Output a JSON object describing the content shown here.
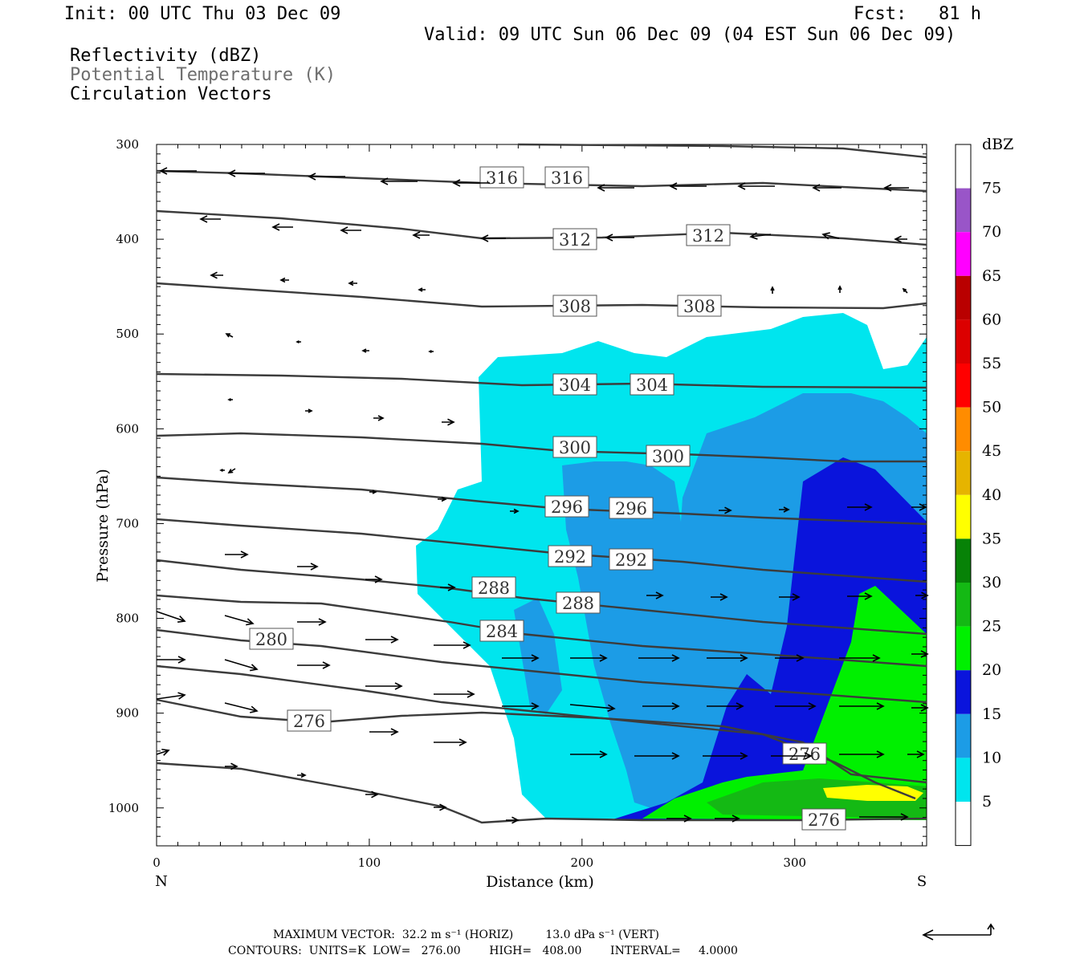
{
  "header": {
    "init": "Init: 00 UTC Thu 03 Dec 09",
    "fcst": "Fcst:   81 h",
    "valid": "Valid: 09 UTC Sun 06 Dec 09 (04 EST Sun 06 Dec 09)",
    "fields": [
      "Reflectivity (dBZ)",
      "Potential Temperature (K)",
      "Circulation Vectors"
    ]
  },
  "chart_data": {
    "type": "contour-cross-section",
    "xlabel": "Distance (km)",
    "ylabel": "Pressure (hPa)",
    "xlim": [
      0,
      362
    ],
    "ylim": [
      300,
      1040
    ],
    "x_ticks": [
      "0",
      "100",
      "200",
      "300"
    ],
    "y_ticks": [
      "300",
      "400",
      "500",
      "600",
      "700",
      "800",
      "900",
      "1000"
    ],
    "x_end_labels": {
      "left": "N",
      "right": "S"
    },
    "colorbar": {
      "unit": "dBZ",
      "levels": [
        "5",
        "10",
        "15",
        "20",
        "25",
        "30",
        "35",
        "40",
        "45",
        "50",
        "55",
        "60",
        "65",
        "70",
        "75"
      ],
      "colors": [
        "#ffffff",
        "#00e5ee",
        "#1c9ce6",
        "#0a14dc",
        "#00f000",
        "#14b914",
        "#078207",
        "#ffff00",
        "#e6b400",
        "#ff8c00",
        "#ff0000",
        "#dc0000",
        "#b90000",
        "#ff00ff",
        "#9955c8",
        "#ffffff"
      ]
    },
    "theta_labels": [
      "316",
      "316",
      "312",
      "312",
      "308",
      "308",
      "304",
      "304",
      "300",
      "300",
      "296",
      "296",
      "292",
      "292",
      "288",
      "288",
      "284",
      "280",
      "276",
      "276",
      "276"
    ],
    "theta_levels_K": [
      276,
      280,
      284,
      288,
      292,
      296,
      300,
      304,
      308,
      312,
      316
    ],
    "reflectivity_dbz": [
      5,
      10,
      15,
      20,
      25,
      35
    ]
  },
  "footer": {
    "max_vector": "MAXIMUM VECTOR:  32.2 m s⁻¹ (HORIZ)         13.0 dPa s⁻¹ (VERT)",
    "contours": "CONTOURS:  UNITS=K  LOW=   276.00        HIGH=   408.00        INTERVAL=     4.0000"
  }
}
